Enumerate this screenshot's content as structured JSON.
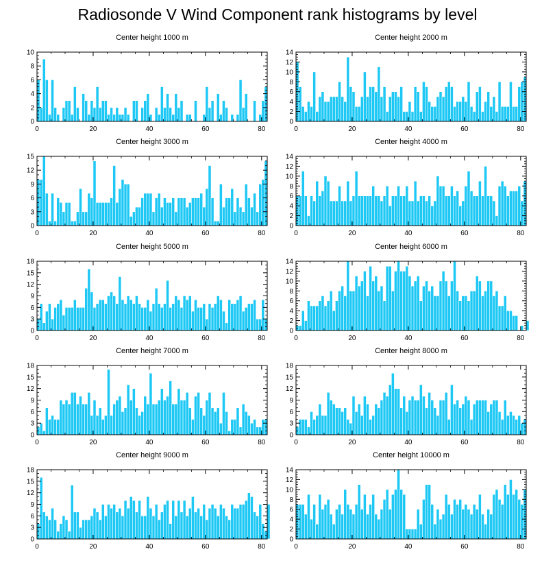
{
  "page": {
    "title": "Radiosonde V Wind Component rank histograms by level"
  },
  "colors": {
    "bar": "#1ec8f5",
    "bar_stroke": "#ffffff",
    "axis": "#000000"
  },
  "chart_data": [
    {
      "type": "bar",
      "title": "Center height 1000 m",
      "xlim": [
        0,
        82
      ],
      "ylim": [
        0,
        10
      ],
      "xticks": [
        0,
        20,
        40,
        60,
        80
      ],
      "yticks": [
        0,
        2,
        4,
        6,
        8,
        10
      ],
      "xlabel": "",
      "ylabel": "",
      "values": [
        6,
        2,
        9,
        6,
        1,
        6,
        2,
        1,
        0,
        2,
        3,
        3,
        1,
        5,
        2,
        0,
        4,
        3,
        1,
        3,
        2,
        5,
        2,
        3,
        3,
        1,
        2,
        1,
        2,
        1,
        1,
        2,
        1,
        0,
        3,
        3,
        0,
        2,
        3,
        4,
        1,
        0,
        2,
        1,
        5,
        2,
        4,
        2,
        1,
        4,
        2,
        3,
        0,
        1,
        1,
        0,
        3,
        0,
        0,
        1,
        5,
        2,
        3,
        0,
        4,
        1,
        3,
        2,
        0,
        1,
        0,
        1,
        6,
        2,
        4,
        0,
        0,
        3,
        0,
        1,
        3,
        5
      ]
    },
    {
      "type": "bar",
      "title": "Center height 2000 m",
      "xlim": [
        0,
        82
      ],
      "ylim": [
        0,
        14
      ],
      "xticks": [
        0,
        20,
        40,
        60,
        80
      ],
      "yticks": [
        0,
        2,
        4,
        6,
        8,
        10,
        12,
        14
      ],
      "xlabel": "",
      "ylabel": "",
      "values": [
        12,
        7,
        3,
        2,
        4,
        3,
        10,
        2,
        5,
        6,
        4,
        4,
        5,
        5,
        5,
        8,
        5,
        4,
        13,
        7,
        6,
        3,
        3,
        5,
        10,
        5,
        7,
        7,
        6,
        11,
        5,
        7,
        2,
        5,
        6,
        6,
        5,
        7,
        2,
        2,
        4,
        2,
        7,
        6,
        2,
        8,
        7,
        4,
        3,
        3,
        5,
        6,
        5,
        7,
        8,
        7,
        3,
        4,
        4,
        5,
        4,
        8,
        3,
        2,
        6,
        7,
        2,
        4,
        6,
        3,
        5,
        2,
        8,
        3,
        3,
        3,
        8,
        3,
        3,
        7,
        8,
        9
      ]
    },
    {
      "type": "bar",
      "title": "Center height 3000 m",
      "xlim": [
        0,
        82
      ],
      "ylim": [
        0,
        15
      ],
      "xticks": [
        0,
        20,
        40,
        60,
        80
      ],
      "yticks": [
        0,
        3,
        6,
        9,
        12,
        15
      ],
      "xlabel": "",
      "ylabel": "",
      "values": [
        10,
        10,
        15,
        7,
        1,
        7,
        1,
        6,
        5,
        3,
        5,
        5,
        1,
        1,
        3,
        8,
        3,
        3,
        7,
        6,
        14,
        5,
        5,
        5,
        5,
        5,
        6,
        13,
        5,
        8,
        10,
        9,
        9,
        2,
        3,
        4,
        4,
        6,
        7,
        7,
        7,
        3,
        6,
        7,
        4,
        6,
        5,
        5,
        6,
        3,
        6,
        6,
        6,
        4,
        5,
        6,
        6,
        6,
        7,
        4,
        8,
        13,
        6,
        1,
        1,
        9,
        4,
        6,
        6,
        8,
        3,
        6,
        4,
        3,
        9,
        6,
        4,
        7,
        3,
        9,
        10,
        14
      ]
    },
    {
      "type": "bar",
      "title": "Center height 4000 m",
      "xlim": [
        0,
        82
      ],
      "ylim": [
        0,
        14
      ],
      "xticks": [
        0,
        20,
        40,
        60,
        80
      ],
      "yticks": [
        0,
        2,
        4,
        6,
        8,
        10,
        12,
        14
      ],
      "xlabel": "",
      "ylabel": "",
      "values": [
        6,
        6,
        11,
        6,
        2,
        6,
        5,
        9,
        6,
        7,
        10,
        9,
        5,
        5,
        5,
        8,
        5,
        5,
        9,
        5,
        6,
        11,
        6,
        6,
        6,
        6,
        6,
        8,
        6,
        6,
        5,
        6,
        8,
        4,
        6,
        6,
        8,
        6,
        6,
        8,
        5,
        5,
        9,
        5,
        6,
        6,
        5,
        6,
        4,
        5,
        10,
        8,
        8,
        6,
        6,
        8,
        6,
        7,
        4,
        5,
        8,
        11,
        7,
        6,
        6,
        9,
        6,
        12,
        6,
        6,
        5,
        2,
        8,
        9,
        8,
        6,
        7,
        7,
        7,
        8,
        5,
        9
      ]
    },
    {
      "type": "bar",
      "title": "Center height 5000 m",
      "xlim": [
        0,
        82
      ],
      "ylim": [
        0,
        18
      ],
      "xticks": [
        0,
        20,
        40,
        60,
        80
      ],
      "yticks": [
        0,
        3,
        6,
        9,
        12,
        15,
        18
      ],
      "xlabel": "",
      "ylabel": "",
      "values": [
        3,
        7,
        2,
        5,
        7,
        3,
        6,
        7,
        8,
        4,
        6,
        6,
        6,
        8,
        6,
        6,
        6,
        11,
        16,
        10,
        6,
        7,
        8,
        8,
        7,
        9,
        10,
        9,
        7,
        14,
        8,
        7,
        9,
        8,
        7,
        9,
        7,
        6,
        6,
        8,
        5,
        7,
        11,
        7,
        6,
        7,
        13,
        6,
        7,
        9,
        8,
        6,
        9,
        8,
        9,
        5,
        8,
        6,
        6,
        7,
        3,
        7,
        6,
        7,
        9,
        8,
        5,
        2,
        8,
        7,
        7,
        8,
        9,
        5,
        6,
        7,
        7,
        8,
        3,
        3,
        8,
        3
      ]
    },
    {
      "type": "bar",
      "title": "Center height 6000 m",
      "xlim": [
        0,
        82
      ],
      "ylim": [
        0,
        14
      ],
      "xticks": [
        0,
        20,
        40,
        60,
        80
      ],
      "yticks": [
        0,
        2,
        4,
        6,
        8,
        10,
        12,
        14
      ],
      "xlabel": "",
      "ylabel": "",
      "values": [
        1,
        1,
        4,
        2,
        6,
        5,
        5,
        5,
        6,
        7,
        5,
        6,
        8,
        4,
        6,
        8,
        9,
        7,
        14,
        8,
        8,
        11,
        9,
        10,
        12,
        7,
        13,
        10,
        11,
        8,
        9,
        6,
        13,
        13,
        8,
        12,
        14,
        12,
        12,
        13,
        11,
        9,
        10,
        11,
        6,
        9,
        10,
        8,
        9,
        7,
        7,
        10,
        12,
        10,
        7,
        10,
        14,
        8,
        6,
        7,
        7,
        6,
        8,
        8,
        11,
        10,
        7,
        8,
        10,
        10,
        7,
        8,
        5,
        5,
        7,
        4,
        4,
        3,
        3,
        0,
        1,
        0,
        2
      ]
    },
    {
      "type": "bar",
      "title": "Center height 7000 m",
      "xlim": [
        0,
        82
      ],
      "ylim": [
        0,
        18
      ],
      "xticks": [
        0,
        20,
        40,
        60,
        80
      ],
      "yticks": [
        0,
        3,
        6,
        9,
        12,
        15,
        18
      ],
      "xlabel": "",
      "ylabel": "",
      "values": [
        2,
        3,
        1,
        7,
        4,
        5,
        4,
        4,
        9,
        8,
        9,
        8,
        11,
        11,
        8,
        10,
        8,
        8,
        11,
        5,
        9,
        5,
        7,
        4,
        5,
        17,
        5,
        8,
        9,
        10,
        6,
        7,
        13,
        9,
        12,
        7,
        5,
        6,
        10,
        8,
        16,
        8,
        8,
        9,
        12,
        9,
        10,
        14,
        8,
        8,
        12,
        9,
        9,
        11,
        7,
        4,
        10,
        11,
        7,
        5,
        9,
        11,
        7,
        6,
        7,
        3,
        11,
        6,
        1,
        4,
        4,
        7,
        2,
        8,
        6,
        5,
        3,
        4,
        2,
        2,
        4,
        4
      ]
    },
    {
      "type": "bar",
      "title": "Center height 8000 m",
      "xlim": [
        0,
        82
      ],
      "ylim": [
        0,
        18
      ],
      "xticks": [
        0,
        20,
        40,
        60,
        80
      ],
      "yticks": [
        0,
        3,
        6,
        9,
        12,
        15,
        18
      ],
      "xlabel": "",
      "ylabel": "",
      "values": [
        2,
        4,
        4,
        4,
        2,
        6,
        4,
        5,
        8,
        5,
        5,
        11,
        9,
        8,
        7,
        7,
        6,
        7,
        4,
        3,
        10,
        6,
        8,
        5,
        10,
        8,
        4,
        5,
        8,
        7,
        9,
        11,
        10,
        13,
        16,
        12,
        12,
        7,
        10,
        6,
        9,
        10,
        9,
        9,
        13,
        10,
        7,
        11,
        9,
        7,
        5,
        9,
        9,
        11,
        4,
        13,
        8,
        9,
        7,
        8,
        10,
        9,
        4,
        8,
        9,
        9,
        9,
        9,
        6,
        8,
        9,
        9,
        6,
        4,
        9,
        5,
        6,
        5,
        4,
        5,
        3,
        4
      ]
    },
    {
      "type": "bar",
      "title": "Center height 9000 m",
      "xlim": [
        0,
        82
      ],
      "ylim": [
        0,
        18
      ],
      "xticks": [
        0,
        20,
        40,
        60,
        80
      ],
      "yticks": [
        0,
        3,
        6,
        9,
        12,
        15,
        18
      ],
      "xlabel": "",
      "ylabel": "",
      "values": [
        4,
        16,
        7,
        6,
        5,
        8,
        5,
        2,
        4,
        6,
        5,
        2,
        14,
        7,
        7,
        3,
        5,
        5,
        5,
        6,
        8,
        7,
        5,
        9,
        6,
        9,
        8,
        9,
        7,
        8,
        6,
        10,
        8,
        11,
        10,
        7,
        10,
        6,
        6,
        11,
        8,
        6,
        9,
        5,
        7,
        9,
        10,
        4,
        10,
        6,
        10,
        7,
        10,
        6,
        8,
        11,
        7,
        8,
        6,
        9,
        5,
        8,
        9,
        8,
        6,
        9,
        8,
        6,
        5,
        9,
        8,
        8,
        9,
        9,
        10,
        12,
        11,
        7,
        6,
        9,
        4,
        2,
        9
      ]
    },
    {
      "type": "bar",
      "title": "Center height 10000 m",
      "xlim": [
        0,
        82
      ],
      "ylim": [
        0,
        14
      ],
      "xticks": [
        0,
        20,
        40,
        60,
        80
      ],
      "yticks": [
        0,
        2,
        4,
        6,
        8,
        10,
        12,
        14
      ],
      "xlabel": "",
      "ylabel": "",
      "values": [
        7,
        7,
        7,
        5,
        9,
        4,
        7,
        3,
        9,
        6,
        7,
        8,
        5,
        3,
        6,
        7,
        5,
        10,
        7,
        6,
        5,
        7,
        11,
        6,
        9,
        5,
        7,
        9,
        5,
        4,
        6,
        8,
        10,
        6,
        9,
        10,
        14,
        10,
        9,
        2,
        2,
        2,
        2,
        6,
        3,
        8,
        11,
        11,
        7,
        3,
        6,
        4,
        5,
        9,
        7,
        5,
        8,
        7,
        8,
        6,
        7,
        6,
        5,
        7,
        6,
        9,
        5,
        3,
        6,
        5,
        9,
        10,
        8,
        7,
        11,
        9,
        12,
        9,
        10,
        8,
        7,
        10
      ]
    }
  ]
}
